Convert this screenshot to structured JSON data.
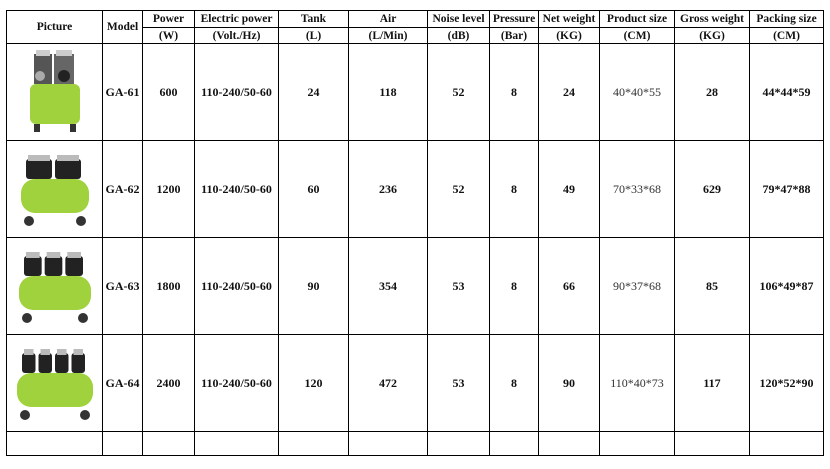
{
  "headers": {
    "picture": "Picture",
    "model": "Model",
    "power": "Power",
    "power_unit": "(W)",
    "electric": "Electric power",
    "electric_unit": "(Volt./Hz)",
    "tank": "Tank",
    "tank_unit": "(L)",
    "air": "Air",
    "air_unit": "(L/Min)",
    "noise": "Noise level",
    "noise_unit": "(dB)",
    "pressure": "Pressure",
    "pressure_unit": "(Bar)",
    "net": "Net weight",
    "net_unit": "(KG)",
    "product": "Product size",
    "product_unit": "(CM)",
    "gross": "Gross weight",
    "gross_unit": "(KG)",
    "packing": "Packing size",
    "packing_unit": "(CM)"
  },
  "rows": [
    {
      "model": "GA-61",
      "power": "600",
      "electric": "110-240/50-60",
      "tank": "24",
      "air": "118",
      "noise": "52",
      "pressure": "8",
      "net": "24",
      "product": "40*40*55",
      "gross": "28",
      "packing": "44*44*59",
      "image": "single-motor-vertical-compressor",
      "heads": 2
    },
    {
      "model": "GA-62",
      "power": "1200",
      "electric": "110-240/50-60",
      "tank": "60",
      "air": "236",
      "noise": "52",
      "pressure": "8",
      "net": "49",
      "product": "70*33*68",
      "gross": "629",
      "packing": "79*47*88",
      "image": "twin-motor-horizontal-compressor",
      "heads": 2
    },
    {
      "model": "GA-63",
      "power": "1800",
      "electric": "110-240/50-60",
      "tank": "90",
      "air": "354",
      "noise": "53",
      "pressure": "8",
      "net": "66",
      "product": "90*37*68",
      "gross": "85",
      "packing": "106*49*87",
      "image": "triple-motor-horizontal-compressor",
      "heads": 3
    },
    {
      "model": "GA-64",
      "power": "2400",
      "electric": "110-240/50-60",
      "tank": "120",
      "air": "472",
      "noise": "53",
      "pressure": "8",
      "net": "90",
      "product": "110*40*73",
      "gross": "117",
      "packing": "120*52*90",
      "image": "quad-motor-horizontal-compressor",
      "heads": 4
    }
  ],
  "colors": {
    "tank_green": "#9fd23c",
    "motor_black": "#222222"
  }
}
